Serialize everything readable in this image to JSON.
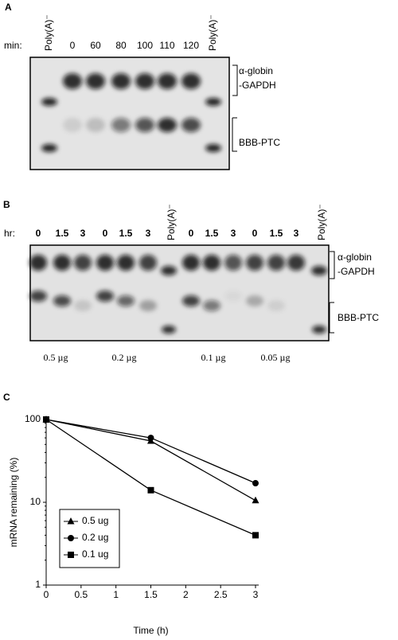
{
  "panel_a": {
    "label": "A",
    "unit_label": "min:",
    "lanes": [
      "Poly(A)⁻",
      "0",
      "60",
      "80",
      "100",
      "110",
      "120",
      "Poly(A)⁻"
    ],
    "right_labels": [
      "α-globin",
      "-GAPDH",
      "BBB-PTC"
    ]
  },
  "panel_b": {
    "label": "B",
    "unit_label": "hr:",
    "lanes": [
      "0",
      "1.5",
      "3",
      "0",
      "1.5",
      "3",
      "Poly(A)⁻",
      "0",
      "1.5",
      "3",
      "0",
      "1.5",
      "3",
      "Poly(A)⁻"
    ],
    "amounts": [
      "0.5 µg",
      "0.2 µg",
      "0.1 µg",
      "0.05 µg"
    ],
    "right_labels": [
      "α-globin",
      "-GAPDH",
      "BBB-PTC"
    ]
  },
  "chart_data": {
    "type": "line",
    "panel_label": "C",
    "x_label": "Time (h)",
    "y_label": "mRNA remaining (%)",
    "x": [
      0,
      1.5,
      3
    ],
    "xlim": [
      0,
      3
    ],
    "xticks": [
      0,
      0.5,
      1,
      1.5,
      2,
      2.5,
      3
    ],
    "ylim": [
      1,
      100
    ],
    "yticks": [
      1,
      10,
      100
    ],
    "y_scale": "log",
    "legend": "lower left",
    "series": [
      {
        "name": "0.5 ug",
        "marker": "triangle",
        "color": "#000000",
        "values": [
          100,
          55,
          10.5
        ]
      },
      {
        "name": "0.2 ug",
        "marker": "circle",
        "color": "#000000",
        "values": [
          100,
          60,
          17
        ]
      },
      {
        "name": "0.1 ug",
        "marker": "square",
        "color": "#000000",
        "values": [
          100,
          14,
          4
        ]
      }
    ]
  }
}
